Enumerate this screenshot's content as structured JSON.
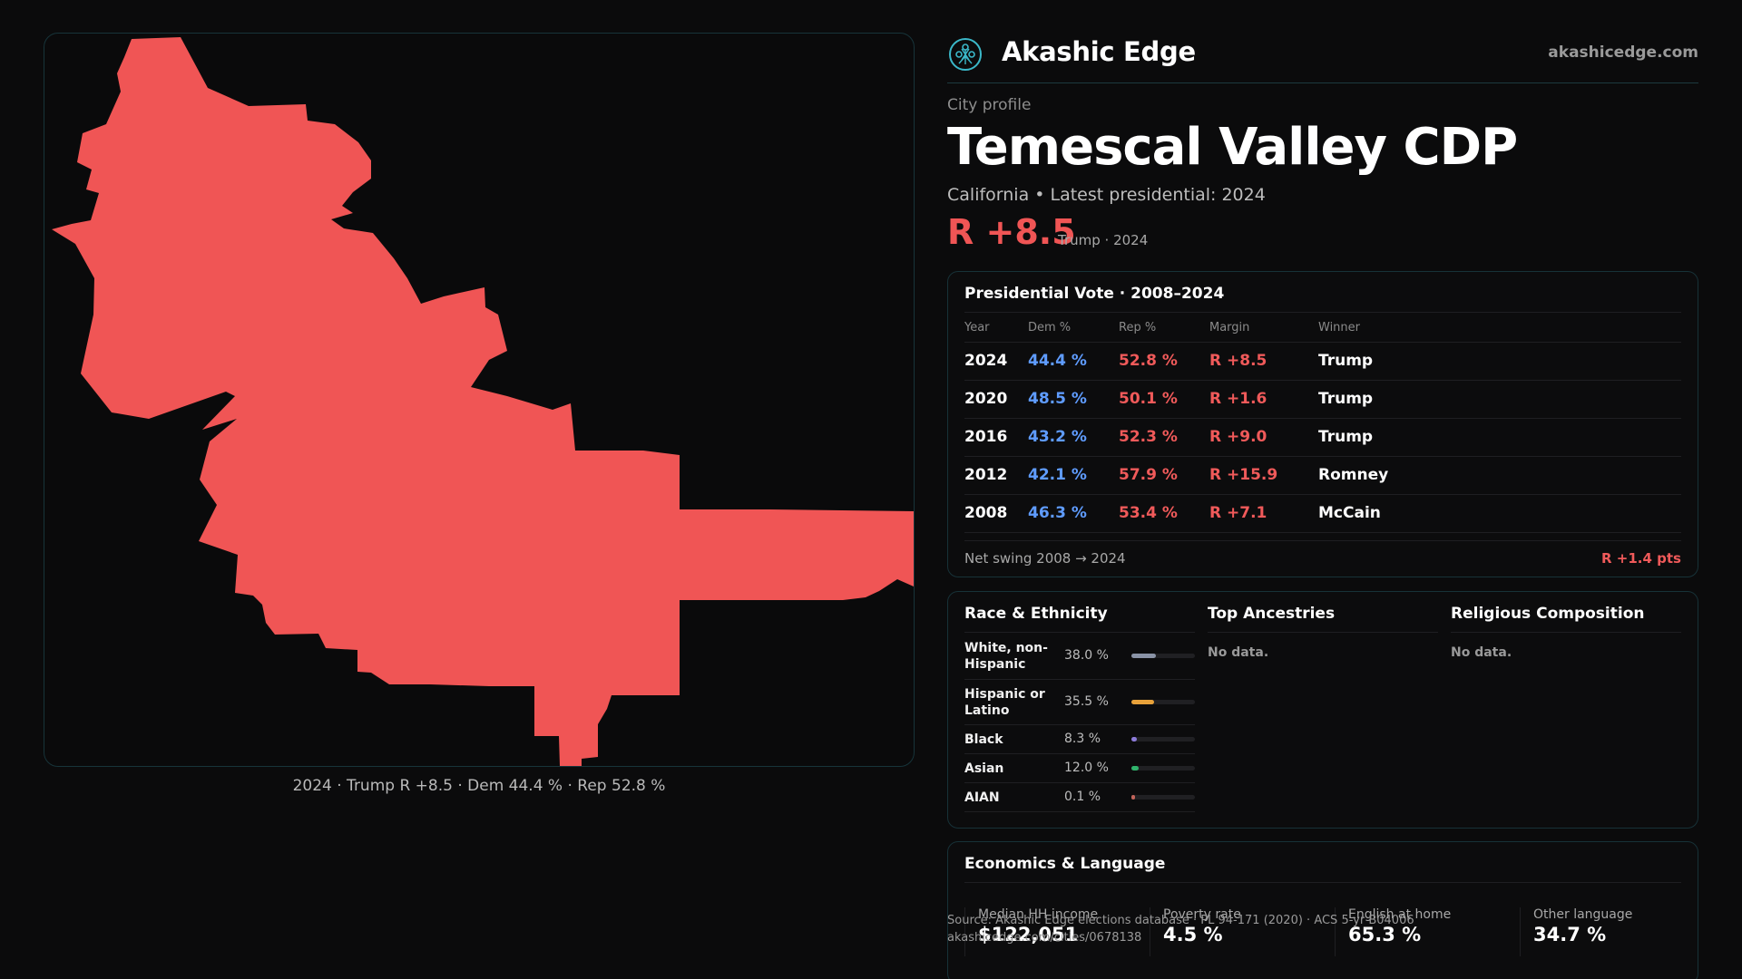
{
  "brand": {
    "name": "Akashic Edge",
    "url": "akashicedge.com",
    "logo_icon": "tree-of-life-icon"
  },
  "header": {
    "kicker": "City profile",
    "city": "Temescal Valley CDP",
    "subtitle": "California • Latest presidential: 2024",
    "margin": "R +8.5",
    "margin_note": "Trump · 2024"
  },
  "map": {
    "caption": "2024 · Trump R +8.5 · Dem 44.4 % · Rep 52.8 %",
    "fill_color": "#f05555"
  },
  "vote": {
    "title": "Presidential Vote · 2008–2024",
    "columns": [
      "Year",
      "Dem %",
      "Rep %",
      "Margin",
      "Winner"
    ],
    "rows": [
      {
        "year": "2024",
        "dem": "44.4 %",
        "rep": "52.8 %",
        "margin": "R +8.5",
        "winner": "Trump"
      },
      {
        "year": "2020",
        "dem": "48.5 %",
        "rep": "50.1 %",
        "margin": "R +1.6",
        "winner": "Trump"
      },
      {
        "year": "2016",
        "dem": "43.2 %",
        "rep": "52.3 %",
        "margin": "R +9.0",
        "winner": "Trump"
      },
      {
        "year": "2012",
        "dem": "42.1 %",
        "rep": "57.9 %",
        "margin": "R +15.9",
        "winner": "Romney"
      },
      {
        "year": "2008",
        "dem": "46.3 %",
        "rep": "53.4 %",
        "margin": "R +7.1",
        "winner": "McCain"
      }
    ],
    "swing_label": "Net swing 2008 → 2024",
    "swing_value": "R +1.4 pts"
  },
  "race": {
    "title": "Race & Ethnicity",
    "rows": [
      {
        "label": "White, non-Hispanic",
        "pct": "38.0 %",
        "value": 0.38,
        "color": "#8a93a6"
      },
      {
        "label": "Hispanic or Latino",
        "pct": "35.5 %",
        "value": 0.355,
        "color": "#e8a23a"
      },
      {
        "label": "Black",
        "pct": "8.3 %",
        "value": 0.083,
        "color": "#8c7bd8"
      },
      {
        "label": "Asian",
        "pct": "12.0 %",
        "value": 0.12,
        "color": "#2fb36b"
      },
      {
        "label": "AIAN",
        "pct": "0.1 %",
        "value": 0.001,
        "color": "#c2645a"
      }
    ]
  },
  "ancestries": {
    "title": "Top Ancestries",
    "empty": "No data."
  },
  "religion": {
    "title": "Religious Composition",
    "empty": "No data."
  },
  "econ": {
    "title": "Economics & Language",
    "items": [
      {
        "label": "Median HH income",
        "value": "$122,051"
      },
      {
        "label": "Poverty rate",
        "value": "4.5 %"
      },
      {
        "label": "English at home",
        "value": "65.3 %"
      },
      {
        "label": "Other language",
        "value": "34.7 %"
      }
    ]
  },
  "source": {
    "line1": "Source: Akashic Edge elections database · PL 94-171 (2020) · ACS 5-yr B04006",
    "line2": "akashicedge.com/cities/0678138"
  }
}
